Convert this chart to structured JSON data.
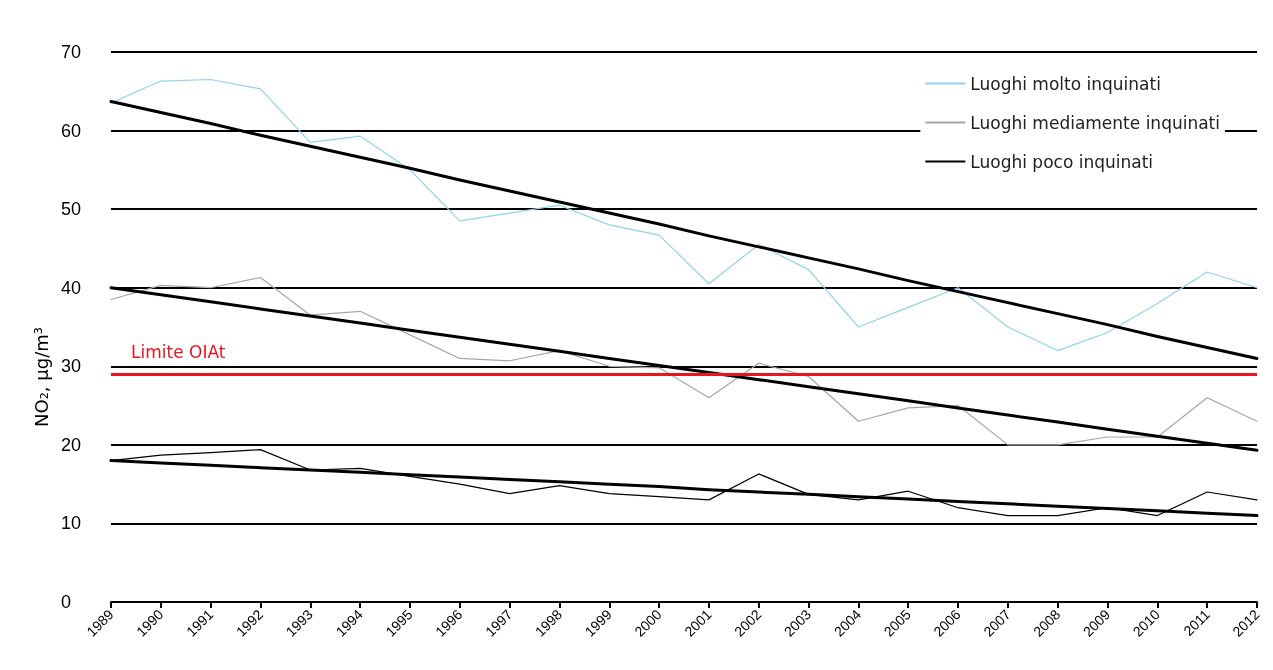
{
  "chart_data": {
    "type": "line",
    "ylabel": "NO₂, µg/m³",
    "categories": [
      "1989",
      "1990",
      "1991",
      "1992",
      "1993",
      "1994",
      "1995",
      "1996",
      "1997",
      "1998",
      "1999",
      "2000",
      "2001",
      "2002",
      "2003",
      "2004",
      "2005",
      "2006",
      "2007",
      "2008",
      "2009",
      "2010",
      "2011",
      "2012"
    ],
    "series": [
      {
        "name": "Luoghi molto inquinati",
        "color": "#8fd3ec",
        "values": [
          63.5,
          66.3,
          66.5,
          65.3,
          58.5,
          59.3,
          55,
          48.5,
          49.5,
          50.5,
          48,
          46.7,
          40.5,
          45.5,
          42.3,
          35,
          37.5,
          40,
          35,
          32,
          34.3,
          38,
          42,
          40
        ]
      },
      {
        "name": "Luoghi mediamente inquinati",
        "color": "#a6a6a6",
        "values": [
          38.5,
          40.3,
          40,
          41.3,
          36.5,
          37,
          34,
          31,
          30.7,
          32,
          30,
          29.8,
          26,
          30.4,
          28.7,
          23,
          24.7,
          25,
          20,
          20,
          21,
          21,
          26,
          23
        ]
      },
      {
        "name": "Luoghi poco inquinati",
        "color": "#000000",
        "values": [
          18,
          18.7,
          19,
          19.4,
          16.8,
          17,
          16,
          15,
          13.8,
          14.8,
          13.8,
          13.4,
          13,
          16.3,
          13.7,
          13,
          14.1,
          12,
          11,
          11,
          12,
          11,
          14,
          13
        ]
      },
      {
        "type": "line",
        "color": "#000000",
        "values": [
          63.7,
          62.3,
          60.9,
          59.4,
          58.0,
          56.6,
          55.2,
          53.7,
          52.3,
          50.9,
          49.5,
          48.1,
          46.6,
          45.2,
          43.8,
          42.4,
          40.9,
          39.5,
          38.1,
          36.7,
          35.3,
          33.8,
          32.4,
          31.0
        ]
      },
      {
        "type": "line",
        "color": "#000000",
        "values": [
          40,
          39.1,
          38.2,
          37.3,
          36.4,
          35.5,
          34.6,
          33.7,
          32.8,
          31.9,
          31.0,
          30.1,
          29.2,
          28.3,
          27.4,
          26.5,
          25.6,
          24.7,
          23.8,
          22.9,
          22.0,
          21.1,
          20.2,
          19.3
        ]
      },
      {
        "type": "line",
        "color": "#000000",
        "values": [
          18,
          17.7,
          17.4,
          17.1,
          16.8,
          16.5,
          16.2,
          15.9,
          15.6,
          15.3,
          15.0,
          14.7,
          14.3,
          14.0,
          13.7,
          13.4,
          13.1,
          12.8,
          12.5,
          12.2,
          11.9,
          11.6,
          11.3,
          11.0
        ]
      }
    ],
    "ylim": [
      0,
      70
    ],
    "yticks": [
      0,
      10,
      20,
      30,
      40,
      50,
      60,
      70
    ],
    "ref_lines": [
      {
        "axis": "y",
        "value": 29,
        "label": "Limite OIAt",
        "color": "#e8141e"
      }
    ],
    "grid": "y",
    "legend": "top right",
    "marker": "none",
    "line_style": "solid"
  }
}
